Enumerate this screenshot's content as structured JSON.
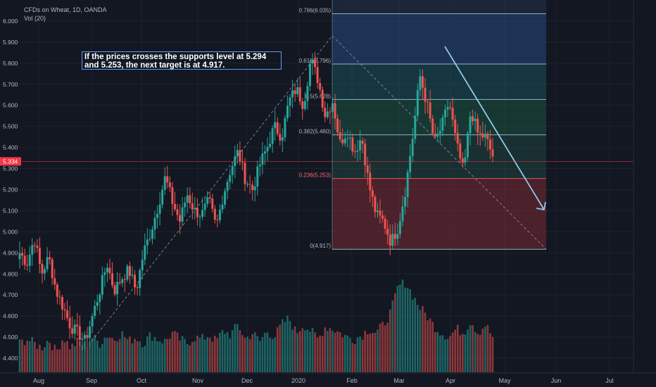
{
  "header": {
    "title": "CFDs on Wheat, 1D, OANDA",
    "volume_label": "Vol (20)"
  },
  "annotation": {
    "line1": "If the prices crosses the supports level at 5.294",
    "line2": "and 5.253, the next target is at 4.917."
  },
  "colors": {
    "background": "#131722",
    "up": "#26a69a",
    "down": "#ef5350",
    "grid": "#1e222d",
    "text": "#b2b5be",
    "projection": "#8fcbe8",
    "price_line": "#f23645"
  },
  "chart_data": {
    "type": "candlestick",
    "symbol": "CFDs on Wheat, 1D, OANDA",
    "y_ticks": [
      "6.000",
      "5.900",
      "5.800",
      "5.700",
      "5.600",
      "5.500",
      "5.400",
      "5.300",
      "5.200",
      "5.100",
      "5.000",
      "4.900",
      "4.800",
      "4.700",
      "4.600",
      "4.500",
      "4.400"
    ],
    "ylim": [
      4.36,
      6.06
    ],
    "x_ticks": [
      "Aug",
      "Sep",
      "Oct",
      "Nov",
      "Dec",
      "2020",
      "Feb",
      "Mar",
      "Apr",
      "May",
      "Jun",
      "Jul"
    ],
    "last_price": "5.334",
    "close_path": [
      4.9,
      4.85,
      4.97,
      4.8,
      4.88,
      4.72,
      4.64,
      4.55,
      4.52,
      4.48,
      4.6,
      4.72,
      4.85,
      4.72,
      4.78,
      4.82,
      4.72,
      4.9,
      5.0,
      5.12,
      5.26,
      5.14,
      5.05,
      5.18,
      5.1,
      5.08,
      5.15,
      5.02,
      5.18,
      5.3,
      5.38,
      5.25,
      5.2,
      5.32,
      5.4,
      5.5,
      5.45,
      5.62,
      5.68,
      5.6,
      5.82,
      5.72,
      5.55,
      5.62,
      5.42,
      5.48,
      5.38,
      5.45,
      5.22,
      5.08,
      5.05,
      4.95,
      5.02,
      5.2,
      5.45,
      5.74,
      5.6,
      5.42,
      5.5,
      5.62,
      5.42,
      5.28,
      5.58,
      5.46,
      5.45,
      5.36
    ],
    "volume_path": [
      4.47,
      4.49,
      4.47,
      4.45,
      4.49,
      4.43,
      4.5,
      4.45,
      4.48,
      4.46,
      4.5,
      4.47,
      4.51,
      4.49,
      4.52,
      4.48,
      4.5,
      4.47,
      4.51,
      4.49,
      4.48,
      4.52,
      4.49,
      4.47,
      4.5,
      4.49,
      4.51,
      4.48,
      4.53,
      4.51,
      4.56,
      4.49,
      4.52,
      4.48,
      4.53,
      4.5,
      4.56,
      4.59,
      4.52,
      4.56,
      4.53,
      4.49,
      4.55,
      4.54,
      4.52,
      4.5,
      4.49,
      4.51,
      4.54,
      4.52,
      4.56,
      4.62,
      4.74,
      4.76,
      4.7,
      4.64,
      4.6,
      4.55,
      4.52,
      4.5,
      4.54,
      4.52,
      4.58,
      4.52,
      4.56,
      4.5
    ],
    "fibonacci": [
      {
        "label": "0.786(6.035)",
        "value": 6.035
      },
      {
        "label": "0.618(5.796)",
        "value": 5.796
      },
      {
        "label": "0.5(5.628)",
        "value": 5.628
      },
      {
        "label": "0.382(5.460)",
        "value": 5.46
      },
      {
        "label": "0.236(5.253)",
        "value": 5.253
      },
      {
        "label": "0(4.917)",
        "value": 4.917
      }
    ],
    "fib_colors": [
      "#2f5fa6",
      "#1d6a6e",
      "#1f6b50",
      "#25584a",
      "#a8323a"
    ],
    "grid": true
  }
}
